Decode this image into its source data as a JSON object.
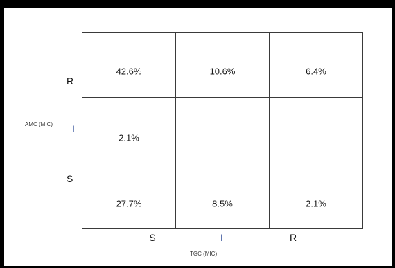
{
  "chart_data": {
    "type": "table",
    "title": "",
    "xlabel": "TGC (MIC)",
    "ylabel": "AMC (MIC)",
    "x_categories": [
      "S",
      "I",
      "R"
    ],
    "y_categories": [
      "R",
      "I",
      "S"
    ],
    "cells": [
      [
        "42.6%",
        "10.6%",
        "6.4%"
      ],
      [
        "2.1%",
        "",
        ""
      ],
      [
        "27.7%",
        "8.5%",
        "2.1%"
      ]
    ],
    "values": [
      [
        42.6,
        10.6,
        6.4
      ],
      [
        2.1,
        null,
        null
      ],
      [
        27.7,
        8.5,
        2.1
      ]
    ],
    "unit": "%",
    "grid": true
  },
  "colors": {
    "frame": "#000000",
    "grid_lines": "#3a3a3a",
    "text": "#1a1a1a",
    "accent_tick": "#1f3f8f"
  }
}
